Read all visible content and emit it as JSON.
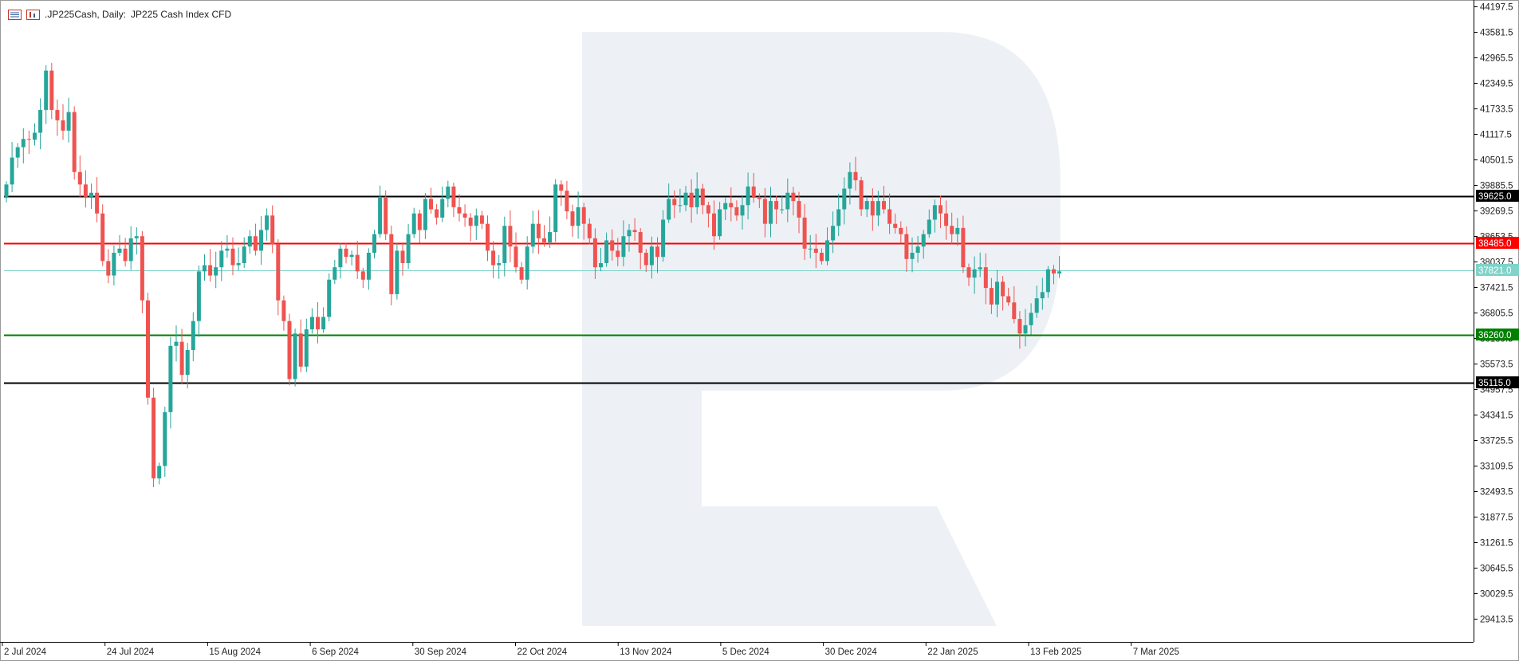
{
  "header": {
    "symbol": ".JP225Cash, Daily:",
    "description": "JP225 Cash Index CFD",
    "icons": [
      "trade-panel-icon",
      "chart-window-icon"
    ]
  },
  "colors": {
    "bull": "#26a69a",
    "bear": "#ef5350",
    "resistance_top": "#000000",
    "resistance": "#ff0000",
    "current": "#7fd3c9",
    "support": "#008000",
    "support_bottom": "#000000",
    "watermark": "#e8edf4"
  },
  "chart_data": {
    "type": "candlestick",
    "title": ".JP225Cash, Daily:  JP225 Cash Index CFD",
    "ylim": [
      28850,
      44260
    ],
    "y_ticks": [
      "44197.5",
      "43581.5",
      "42965.5",
      "42349.5",
      "41733.5",
      "41117.5",
      "40501.5",
      "39885.5",
      "39269.5",
      "38653.5",
      "38037.5",
      "37421.5",
      "36805.5",
      "36189.5",
      "35573.5",
      "34957.5",
      "34341.5",
      "33725.5",
      "33109.5",
      "32493.5",
      "31877.5",
      "31261.5",
      "30645.5",
      "30029.5",
      "29413.5"
    ],
    "x_labels": [
      "2 Jul 2024",
      "24 Jul 2024",
      "15 Aug 2024",
      "6 Sep 2024",
      "30 Sep 2024",
      "22 Oct 2024",
      "13 Nov 2024",
      "5 Dec 2024",
      "30 Dec 2024",
      "22 Jan 2025",
      "13 Feb 2025",
      "7 Mar 2025"
    ],
    "levels": [
      {
        "value": 39625.0,
        "label": "39625.0",
        "color_key": "resistance_top"
      },
      {
        "value": 38485.0,
        "label": "38485.0",
        "color_key": "resistance"
      },
      {
        "value": 37821.0,
        "label": "37821.0",
        "color_key": "current"
      },
      {
        "value": 36260.0,
        "label": "36260.0",
        "color_key": "support"
      },
      {
        "value": 35115.0,
        "label": "35115.0",
        "color_key": "support_bottom"
      }
    ],
    "closes": [
      39900,
      40550,
      40800,
      41000,
      40980,
      41150,
      41700,
      42650,
      41700,
      41450,
      41200,
      41650,
      40200,
      39900,
      39600,
      39700,
      39200,
      38050,
      37700,
      38250,
      38350,
      38050,
      38600,
      38650,
      37100,
      34750,
      32800,
      33100,
      34400,
      36000,
      36100,
      35300,
      35900,
      36600,
      37800,
      37950,
      37700,
      37900,
      38300,
      38350,
      37950,
      38000,
      38400,
      38650,
      38300,
      38800,
      39150,
      38450,
      37100,
      36600,
      35200,
      36300,
      35500,
      36400,
      36700,
      36400,
      36700,
      37600,
      37900,
      38350,
      38150,
      38200,
      37800,
      37600,
      38250,
      38700,
      39600,
      38700,
      37250,
      38300,
      38000,
      38700,
      39200,
      38800,
      39550,
      39300,
      39100,
      39550,
      39850,
      39350,
      39200,
      39100,
      38900,
      39150,
      38950,
      38300,
      37950,
      38000,
      38900,
      38400,
      37900,
      37600,
      38400,
      38950,
      38600,
      38500,
      38750,
      39900,
      39750,
      39250,
      38900,
      39350,
      38950,
      38600,
      37900,
      38000,
      38550,
      38300,
      38150,
      38650,
      38800,
      38750,
      38250,
      37950,
      38400,
      38150,
      39050,
      39550,
      39400,
      39400,
      39700,
      39350,
      39800,
      39400,
      39200,
      38650,
      39300,
      39450,
      39350,
      39150,
      39400,
      39850,
      39600,
      39550,
      38950,
      39500,
      39300,
      39300,
      39700,
      39500,
      39100,
      38350,
      38350,
      38250,
      38050,
      38550,
      38900,
      39300,
      39800,
      40200,
      40000,
      39300,
      39500,
      39150,
      39500,
      39300,
      38950,
      38850,
      38700,
      38100,
      38250,
      38400,
      38700,
      39050,
      39400,
      39200,
      38900,
      38700,
      38850,
      37900,
      37650,
      37850,
      37900,
      37400,
      37000,
      37550,
      37200,
      37050,
      36650,
      36300,
      36500,
      36800,
      37150,
      37300,
      37850,
      37750,
      37800
    ]
  }
}
